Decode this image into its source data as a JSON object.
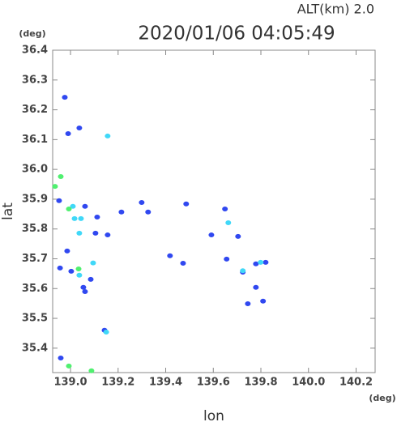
{
  "chart_data": {
    "type": "scatter",
    "title": "2020/01/06 04:05:49",
    "subtitle": "ALT(km) 2.0",
    "x_label": "lon",
    "y_label": "lat",
    "x_unit": "(deg)",
    "y_unit": "(deg)",
    "xlim": [
      138.925,
      140.28
    ],
    "ylim": [
      35.318,
      36.4
    ],
    "xticks": [
      {
        "value": 139.0,
        "label": "139.0"
      },
      139.2,
      139.4,
      139.6,
      139.8,
      {
        "value": 140.0,
        "label": "140.0"
      },
      140.2
    ],
    "yticks": [
      36.4,
      36.3,
      36.2,
      36.1,
      {
        "value": 36.0,
        "label": "36.0"
      },
      35.9,
      35.8,
      35.7,
      35.6,
      35.5,
      35.4
    ],
    "series": [
      {
        "color": "#3048f0",
        "x": [
          138.976,
          139.037,
          138.99,
          138.952,
          138.956,
          138.986,
          139.003,
          139.061,
          139.054,
          139.085,
          139.112,
          139.061,
          139.105,
          139.143,
          139.156,
          139.214,
          139.299,
          139.326,
          139.418,
          139.473,
          139.486,
          139.649,
          139.592,
          139.656,
          139.704,
          139.779,
          139.745,
          139.779,
          139.724,
          139.809,
          139.82,
          138.959
        ],
        "y": [
          36.242,
          36.139,
          36.12,
          35.895,
          35.669,
          35.726,
          35.658,
          35.59,
          35.604,
          35.631,
          35.84,
          35.876,
          35.786,
          35.46,
          35.78,
          35.857,
          35.889,
          35.857,
          35.71,
          35.685,
          35.884,
          35.867,
          35.78,
          35.699,
          35.775,
          35.683,
          35.549,
          35.604,
          35.655,
          35.558,
          35.688,
          35.367
        ]
      },
      {
        "color": "#40d8f8",
        "x": [
          139.156,
          139.017,
          139.01,
          139.044,
          139.037,
          139.095,
          139.15,
          139.663,
          139.724,
          139.799,
          139.037
        ],
        "y": [
          36.112,
          35.835,
          35.876,
          35.835,
          35.645,
          35.686,
          35.454,
          35.821,
          35.66,
          35.688,
          35.786
        ]
      },
      {
        "color": "#50f070",
        "x": [
          138.959,
          138.935,
          138.993,
          139.034,
          138.993,
          139.088
        ],
        "y": [
          35.976,
          35.943,
          35.867,
          35.666,
          35.34,
          35.324
        ]
      }
    ]
  }
}
